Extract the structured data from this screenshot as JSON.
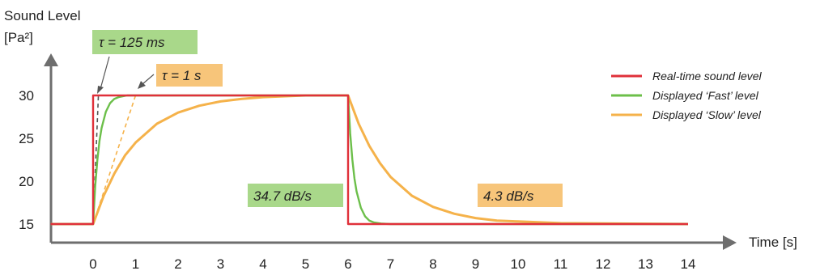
{
  "chart_data": {
    "type": "line",
    "ylabel_line1": "Sound Level",
    "ylabel_line2": "[Pa²]",
    "xlabel": "Time [s]",
    "xlim": [
      -1,
      14.3
    ],
    "ylim": [
      13.2,
      37
    ],
    "xticks": [
      0,
      1,
      2,
      3,
      4,
      5,
      6,
      7,
      8,
      9,
      10,
      11,
      12,
      13,
      14
    ],
    "yticks": [
      15,
      20,
      25,
      30
    ],
    "colors": {
      "real": "#e0303a",
      "fast": "#6cbf4a",
      "slow": "#f5b24a",
      "fast_box": "#a9d88a",
      "slow_box": "#f7c57a"
    },
    "series": [
      {
        "key": "real",
        "name": "Real-time sound level",
        "color": "#e0303a",
        "x": [
          -1,
          0,
          0,
          6,
          6,
          6.3,
          14
        ],
        "y": [
          15,
          15,
          30,
          30,
          15,
          15,
          15
        ]
      },
      {
        "key": "fast",
        "name": "Displayed ‘Fast’ level",
        "color": "#6cbf4a",
        "x": [
          -1,
          0,
          0.05,
          0.1,
          0.15,
          0.2,
          0.3,
          0.4,
          0.5,
          0.6,
          0.8,
          1.0,
          6,
          6.05,
          6.1,
          6.15,
          6.2,
          6.3,
          6.4,
          6.5,
          6.6,
          6.8,
          7.0,
          14
        ],
        "y": [
          15,
          15,
          19.4,
          22.5,
          24.7,
          26.2,
          28.1,
          29.1,
          29.6,
          29.8,
          30,
          30,
          30,
          25.6,
          22.5,
          20.3,
          18.8,
          16.9,
          15.9,
          15.4,
          15.2,
          15.05,
          15,
          15
        ]
      },
      {
        "key": "slow",
        "name": "Displayed ‘Slow’ level",
        "color": "#f5b24a",
        "x": [
          -1,
          0,
          0.25,
          0.5,
          0.75,
          1.0,
          1.5,
          2.0,
          2.5,
          3.0,
          3.5,
          4.0,
          5.0,
          6.0,
          6.25,
          6.5,
          6.75,
          7.0,
          7.5,
          8.0,
          8.5,
          9.0,
          9.5,
          10.0,
          11.0,
          14
        ],
        "y": [
          15,
          15,
          18.3,
          20.9,
          23.0,
          24.5,
          26.7,
          28.0,
          28.8,
          29.3,
          29.6,
          29.8,
          30,
          30,
          26.7,
          24.1,
          22.1,
          20.5,
          18.3,
          17.0,
          16.2,
          15.7,
          15.4,
          15.3,
          15.1,
          15
        ]
      }
    ],
    "tangents": [
      {
        "key": "fast",
        "x": [
          0,
          0.125
        ],
        "y": [
          15,
          30
        ]
      },
      {
        "key": "slow",
        "x": [
          0,
          1
        ],
        "y": [
          15,
          30
        ]
      }
    ],
    "annotations": {
      "tau_fast": "τ = 125 ms",
      "tau_slow": "τ = 1 s",
      "rate_fast": "34.7 dB/s",
      "rate_slow": "4.3 dB/s"
    },
    "legend": {
      "position": "top-right",
      "items": [
        {
          "label": "Real-time sound level",
          "color": "#e0303a"
        },
        {
          "label": "Displayed ‘Fast’ level",
          "color": "#6cbf4a"
        },
        {
          "label": "Displayed ‘Slow’ level",
          "color": "#f5b24a"
        }
      ]
    },
    "grid": false
  }
}
